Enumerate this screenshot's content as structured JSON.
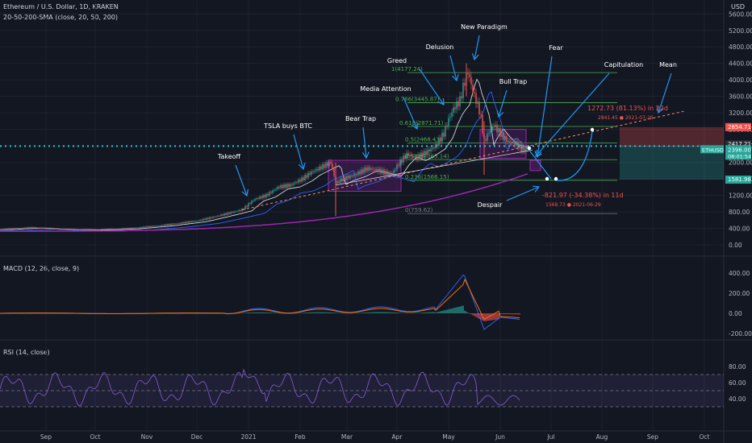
{
  "header": {
    "symbol": "Ethereum / U.S. Dollar, 1D, KRAKEN",
    "sma": "20-50-200-SMA (close, 20, 50, 200)",
    "currency": "USD",
    "macd": "MACD (12, 26, close, 9)",
    "rsi": "RSI (14, close)"
  },
  "chart_data": {
    "type": "candlestick",
    "price_axis_ticks": [
      "5600.00",
      "5200.00",
      "4800.00",
      "4400.00",
      "4000.00",
      "3600.00",
      "3200.00",
      "2800.00",
      "2400.00",
      "2000.00",
      "1600.00",
      "1200.00",
      "800.00",
      "400.00",
      "0.00"
    ],
    "price_ylim": [
      0,
      5600
    ],
    "macd_axis_ticks": [
      "400.00",
      "200.00",
      "0.00",
      "-200.00"
    ],
    "macd_ylim": [
      -250,
      450
    ],
    "rsi_axis_ticks": [
      "80.00",
      "60.00",
      "40.00"
    ],
    "rsi_ylim": [
      25,
      95
    ],
    "time_ticks": [
      "Sep",
      "Oct",
      "Nov",
      "Dec",
      "2021",
      "Feb",
      "Mar",
      "Apr",
      "May",
      "Jun",
      "Jul",
      "Aug",
      "Sep",
      "Oct"
    ],
    "price_labels": {
      "top_red": "2854.71",
      "mid": "2417.21",
      "current": "2396.00",
      "current_sub": "08:01:54",
      "symbol": "ETHUSD",
      "bottom": "1581.98"
    },
    "fib_levels": [
      {
        "label": "1(4177.24)",
        "value": 4177.24
      },
      {
        "label": "0.786(3445.87)",
        "value": 3445.87
      },
      {
        "label": "0.618(2871.71)",
        "value": 2871.71
      },
      {
        "label": "0.5(2468.43)",
        "value": 2468.43
      },
      {
        "label": "0.382(2065.14)",
        "value": 2065.14
      },
      {
        "label": "0.236(1566.15)",
        "value": 1566.15
      },
      {
        "label": "0(759.62)",
        "value": 759.62
      }
    ],
    "annotations": [
      "Takeoff",
      "TSLA buys BTC",
      "Bear Trap",
      "Media Attention",
      "Greed",
      "Delusion",
      "New Paradigm",
      "Bull Trap",
      "Fear",
      "Capitulation",
      "Mean",
      "Despair"
    ],
    "projection_up": {
      "line1": "1272.73 (81.13%) in 22d",
      "line2": "2841.45 ● 2021-07-26"
    },
    "projection_down": {
      "line1": "-821.97 (-34.38%) in 11d",
      "line2": "1568.73 ● 2021-06-29"
    },
    "rsi_levels": [
      70,
      50,
      30
    ],
    "colors": {
      "up": "#26a69a",
      "down": "#ef5350",
      "sma20": "#d1d4dc",
      "sma50": "#2962ff",
      "sma200": "#9c27b0",
      "fib": "#4caf50",
      "cyan": "#26c6da",
      "rsi": "#7e57c2"
    }
  }
}
